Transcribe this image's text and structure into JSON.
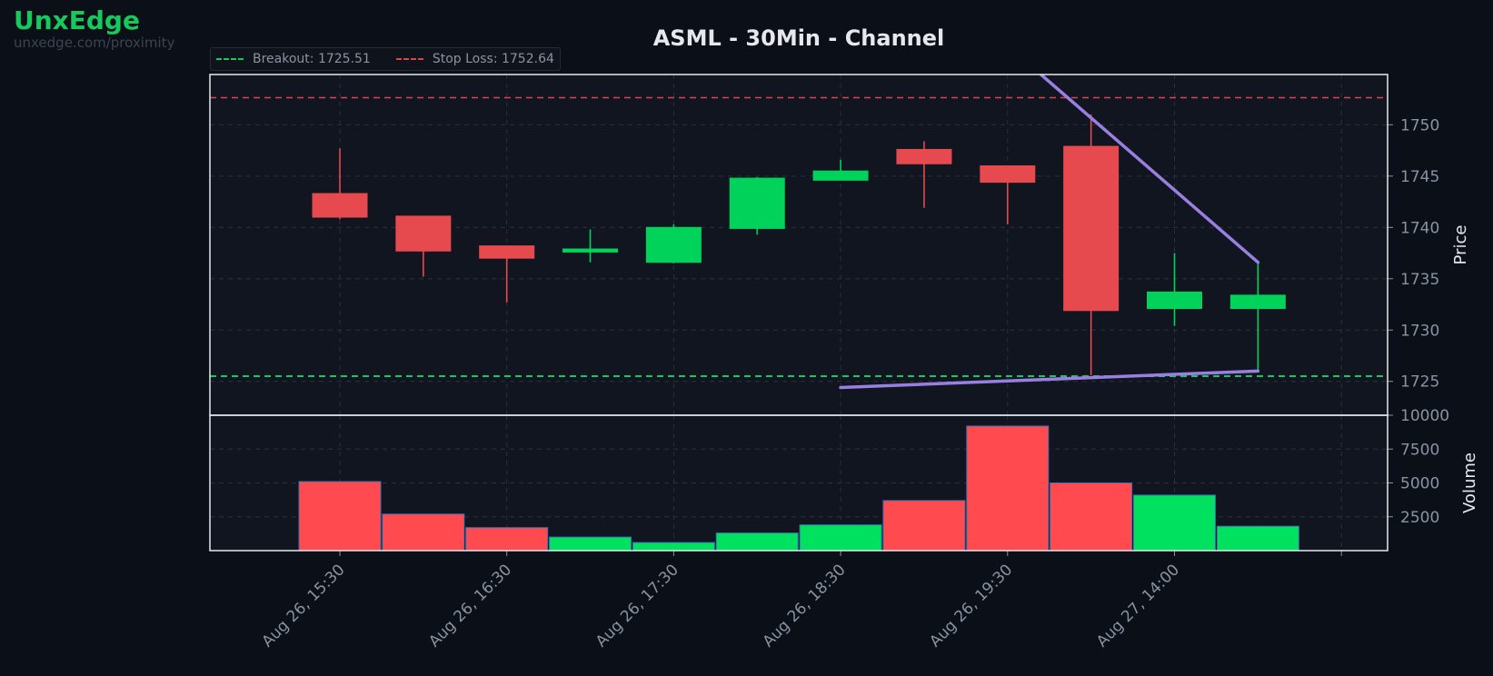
{
  "brand": {
    "name": "UnxEdge",
    "url": "unxedge.com/proximity"
  },
  "colors": {
    "background": "#0b0f17",
    "panel": "#11151f",
    "up": "#00d25a",
    "down": "#e64a4e",
    "volume_up": "#00e15f",
    "volume_down": "#ff4b4f",
    "pattern_line": "#9a7fe2",
    "breakout": "#16c95c",
    "stop_loss": "#d9464a",
    "text_muted": "#8a93a2",
    "text_light": "#e6e8ec"
  },
  "chart_data": {
    "type": "candlestick",
    "title": "ASML - 30Min - Channel",
    "price_axis": {
      "label": "Price",
      "ticks": [
        "1725",
        "1730",
        "1735",
        "1740",
        "1745",
        "1750"
      ],
      "range": [
        1721.7,
        1754.9
      ]
    },
    "volume_axis": {
      "label": "Volume",
      "ticks": [
        "2500",
        "5000",
        "7500",
        "10000"
      ],
      "range": [
        0,
        10000
      ]
    },
    "x_tick_labels": [
      "Aug 26, 15:30",
      "Aug 26, 16:30",
      "Aug 26, 17:30",
      "Aug 26, 18:30",
      "Aug 26, 19:30",
      "Aug 27, 14:00"
    ],
    "candles": [
      {
        "open": 1743.3,
        "high": 1747.7,
        "low": 1740.8,
        "close": 1741.0,
        "volume": 5100
      },
      {
        "open": 1741.1,
        "high": 1741.1,
        "low": 1735.2,
        "close": 1737.7,
        "volume": 2700
      },
      {
        "open": 1738.2,
        "high": 1738.2,
        "low": 1732.7,
        "close": 1737.0,
        "volume": 1700
      },
      {
        "open": 1737.6,
        "high": 1739.8,
        "low": 1736.6,
        "close": 1737.9,
        "volume": 1000
      },
      {
        "open": 1736.6,
        "high": 1740.3,
        "low": 1736.5,
        "close": 1740.0,
        "volume": 600
      },
      {
        "open": 1739.9,
        "high": 1744.9,
        "low": 1739.3,
        "close": 1744.8,
        "volume": 1300
      },
      {
        "open": 1744.6,
        "high": 1746.6,
        "low": 1744.6,
        "close": 1745.5,
        "volume": 1900
      },
      {
        "open": 1747.6,
        "high": 1748.4,
        "low": 1741.9,
        "close": 1746.2,
        "volume": 3700
      },
      {
        "open": 1746.0,
        "high": 1746.0,
        "low": 1740.3,
        "close": 1744.4,
        "volume": 9200
      },
      {
        "open": 1747.9,
        "high": 1751.0,
        "low": 1725.6,
        "close": 1731.9,
        "volume": 5000
      },
      {
        "open": 1732.1,
        "high": 1737.5,
        "low": 1730.4,
        "close": 1733.7,
        "volume": 4100
      },
      {
        "open": 1732.1,
        "high": 1736.6,
        "low": 1726.0,
        "close": 1733.4,
        "volume": 1800
      }
    ],
    "levels": [
      {
        "name": "Breakout",
        "value": 1725.51,
        "legend": "Breakout: 1725.51"
      },
      {
        "name": "Stop Loss",
        "value": 1752.64,
        "legend": "Stop Loss: 1752.64"
      }
    ],
    "pattern_lines": [
      {
        "from": {
          "candle": 6,
          "price": 1724.4
        },
        "to": {
          "candle": 11,
          "price": 1726.0
        }
      },
      {
        "from": {
          "candle": 8.4,
          "price": 1754.9
        },
        "to": {
          "candle": 11,
          "price": 1736.6
        }
      }
    ]
  }
}
